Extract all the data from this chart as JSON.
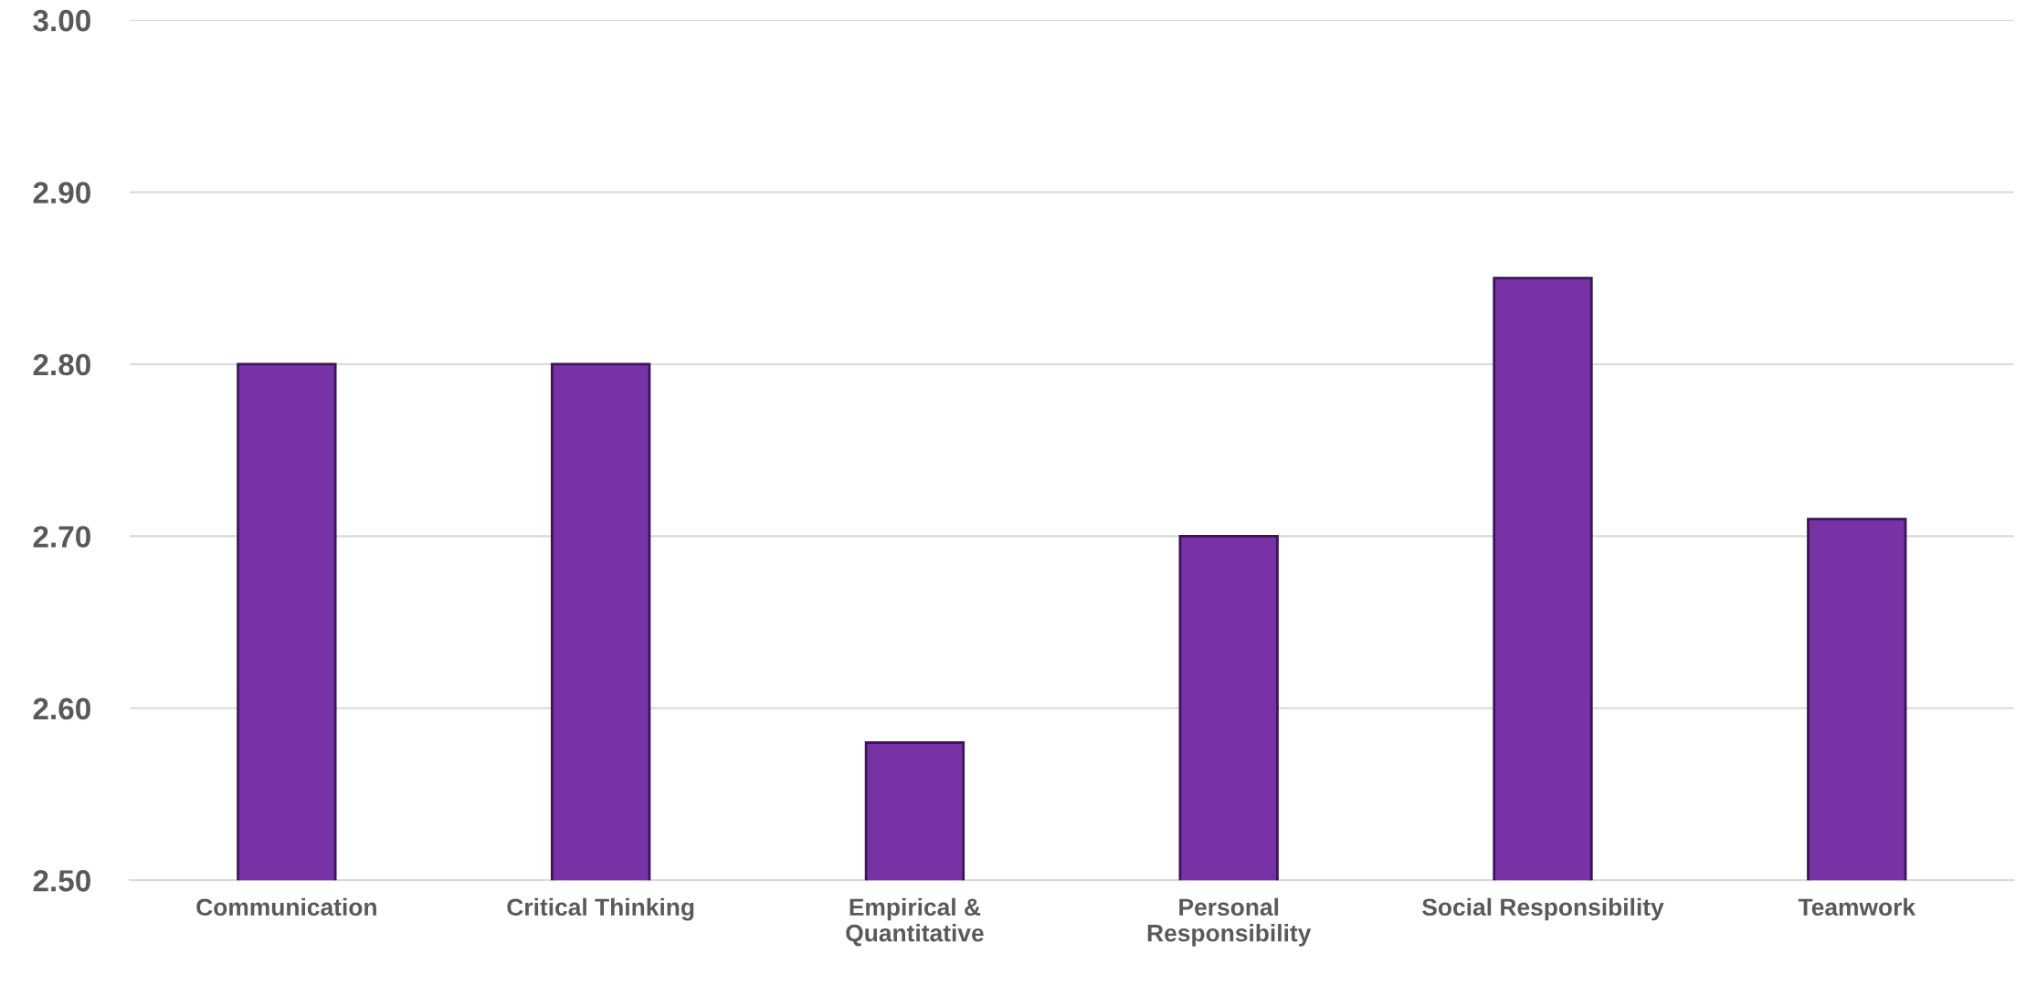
{
  "chart_data": {
    "type": "bar",
    "categories": [
      "Communication",
      "Critical Thinking",
      "Empirical &\nQuantitative",
      "Personal\nResponsibility",
      "Social Responsibility",
      "Teamwork"
    ],
    "values": [
      2.8,
      2.8,
      2.58,
      2.7,
      2.85,
      2.71
    ],
    "color": "#7733a6",
    "ylim": [
      2.5,
      3.0
    ],
    "yticks": [
      {
        "value": 2.5,
        "label": "2.50"
      },
      {
        "value": 2.6,
        "label": "2.60"
      },
      {
        "value": 2.7,
        "label": "2.70"
      },
      {
        "value": 2.8,
        "label": "2.80"
      },
      {
        "value": 2.9,
        "label": "2.90"
      },
      {
        "value": 3.0,
        "label": "3.00"
      }
    ],
    "grid": "y",
    "legend": false
  }
}
